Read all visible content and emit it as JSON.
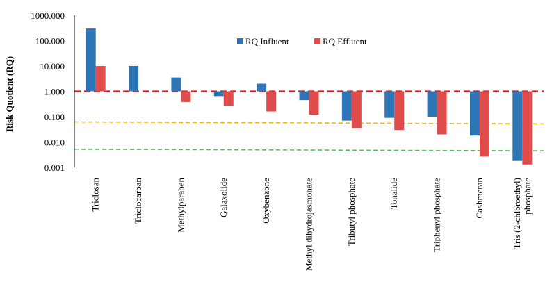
{
  "chart_data": {
    "type": "bar",
    "ylabel": "Risk Quotient (RQ)",
    "yscale": "log",
    "ylim": [
      0.001,
      1000
    ],
    "baseline": 1,
    "yticks": [
      "1000.000",
      "100.000",
      "10.000",
      "1.000",
      "0.100",
      "0.010",
      "0.001"
    ],
    "yticks_values": [
      1000,
      100,
      10,
      1,
      0.1,
      0.01,
      0.001
    ],
    "categories": [
      [
        "Triclosan"
      ],
      [
        "Triclocarban"
      ],
      [
        "Methylparaben"
      ],
      [
        "Galaxolide"
      ],
      [
        "Oxybenzone"
      ],
      [
        "Methyl dihydrojasmonate"
      ],
      [
        "Tributyl phosphate"
      ],
      [
        "Tonalide"
      ],
      [
        "Triphenyl phosphate"
      ],
      [
        "Cashmeran"
      ],
      [
        "Tris (2-chloroethyl)",
        "phosphate"
      ]
    ],
    "series": [
      {
        "name": "RQ Influent",
        "color": "#2E75B6",
        "values": [
          300,
          10,
          3.5,
          0.65,
          2.0,
          0.45,
          0.07,
          0.09,
          0.1,
          0.018,
          0.0018
        ]
      },
      {
        "name": "RQ Effluent",
        "color": "#E04B4B",
        "values": [
          10,
          null,
          0.38,
          0.27,
          0.16,
          0.12,
          0.035,
          0.03,
          0.02,
          0.0027,
          0.0013
        ]
      }
    ],
    "reference_lines": [
      {
        "value": 1,
        "color": "#E8141B",
        "style": "dashed"
      },
      {
        "value_start": 0.062,
        "value_end": 0.052,
        "color": "#F5B800",
        "style": "dashed"
      },
      {
        "value_start": 0.0052,
        "value_end": 0.0045,
        "color": "#4CC94C",
        "style": "dashed"
      }
    ],
    "legend_position": "top-right",
    "grid": false
  }
}
